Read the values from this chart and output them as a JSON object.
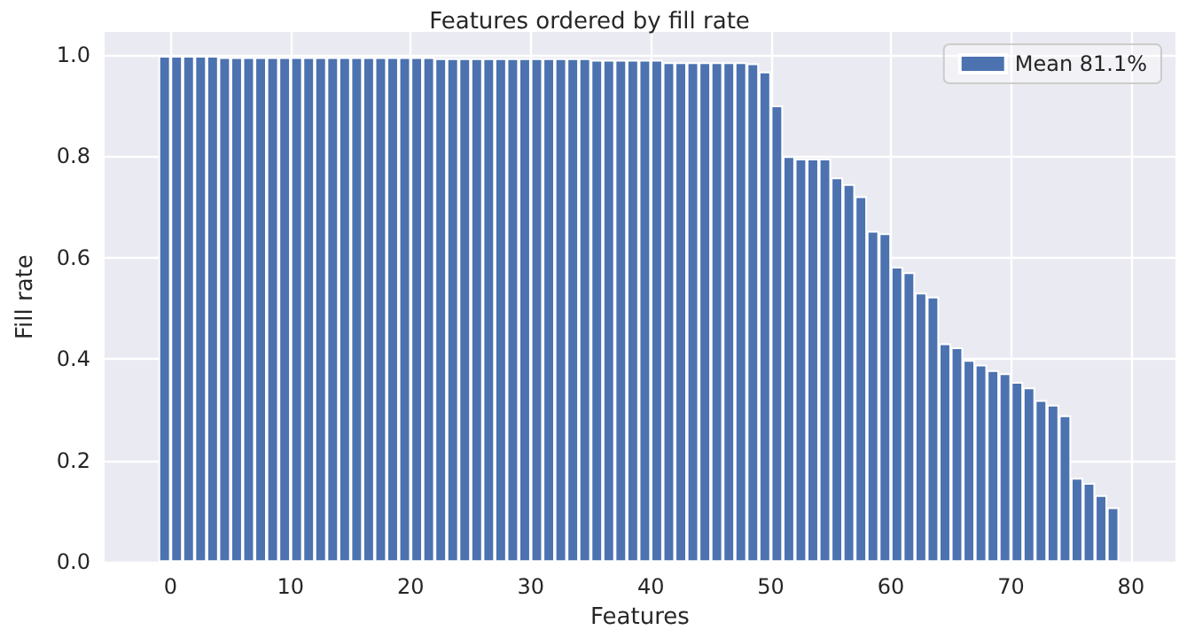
{
  "chart_data": {
    "type": "bar",
    "title": "Features ordered by fill rate",
    "xlabel": "Features",
    "ylabel": "Fill rate",
    "x": [
      -0.5,
      0.5,
      1.5,
      2.5,
      3.5,
      4.5,
      5.5,
      6.5,
      7.5,
      8.5,
      9.5,
      10.5,
      11.5,
      12.5,
      13.5,
      14.5,
      15.5,
      16.5,
      17.5,
      18.5,
      19.5,
      20.5,
      21.5,
      22.5,
      23.5,
      24.5,
      25.5,
      26.5,
      27.5,
      28.5,
      29.5,
      30.5,
      31.5,
      32.5,
      33.5,
      34.5,
      35.5,
      36.5,
      37.5,
      38.5,
      39.5,
      40.5,
      41.5,
      42.5,
      43.5,
      44.5,
      45.5,
      46.5,
      47.5,
      48.5,
      49.5,
      50.5,
      51.5,
      52.5,
      53.5,
      54.5,
      55.5,
      56.5,
      57.5,
      58.5,
      59.5,
      60.5,
      61.5,
      62.5,
      63.5,
      64.5,
      65.5,
      66.5,
      67.5,
      68.5,
      69.5,
      70.5,
      71.5,
      72.5,
      73.5,
      74.5,
      75.5,
      76.5,
      77.5,
      78.5
    ],
    "series": [
      {
        "name": "Mean 81.1%",
        "color": "#4c72b0",
        "values": [
          0.998,
          0.998,
          0.998,
          0.998,
          0.998,
          0.995,
          0.995,
          0.995,
          0.995,
          0.995,
          0.995,
          0.995,
          0.995,
          0.995,
          0.995,
          0.995,
          0.995,
          0.995,
          0.995,
          0.995,
          0.995,
          0.995,
          0.995,
          0.993,
          0.993,
          0.993,
          0.993,
          0.993,
          0.993,
          0.993,
          0.993,
          0.993,
          0.993,
          0.993,
          0.993,
          0.993,
          0.99,
          0.99,
          0.99,
          0.99,
          0.99,
          0.99,
          0.985,
          0.985,
          0.985,
          0.985,
          0.985,
          0.985,
          0.985,
          0.983,
          0.967,
          0.9,
          0.8,
          0.795,
          0.795,
          0.795,
          0.758,
          0.745,
          0.721,
          0.653,
          0.648,
          0.582,
          0.571,
          0.531,
          0.523,
          0.431,
          0.423,
          0.398,
          0.389,
          0.378,
          0.372,
          0.355,
          0.344,
          0.319,
          0.31,
          0.289,
          0.166,
          0.156,
          0.132,
          0.108
        ]
      }
    ],
    "xlim": [
      -5.5,
      83.7
    ],
    "xticks": [
      0,
      10,
      20,
      30,
      40,
      50,
      60,
      70,
      80
    ],
    "ylim": [
      0,
      1.045
    ],
    "yticks": [
      {
        "value": 0,
        "label": "0.0"
      },
      0.2,
      0.4,
      0.6,
      0.8,
      {
        "value": 1,
        "label": "1.0"
      }
    ],
    "grid": true,
    "legend": "top right"
  }
}
